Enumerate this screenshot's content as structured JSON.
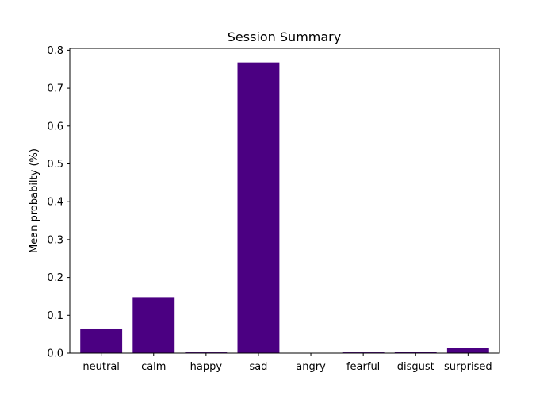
{
  "chart_data": {
    "type": "bar",
    "title": "Session Summary",
    "xlabel": "",
    "ylabel": "Mean probabilty (%)",
    "categories": [
      "neutral",
      "calm",
      "happy",
      "sad",
      "angry",
      "fearful",
      "disgust",
      "surprised"
    ],
    "values": [
      0.065,
      0.148,
      0.002,
      0.768,
      0.0,
      0.002,
      0.004,
      0.014
    ],
    "ylim": [
      0,
      0.805
    ],
    "yticks": [
      "0.0",
      "0.1",
      "0.2",
      "0.3",
      "0.4",
      "0.5",
      "0.6",
      "0.7",
      "0.8"
    ],
    "bar_color": "#4b0082",
    "grid": false,
    "legend": "none"
  }
}
